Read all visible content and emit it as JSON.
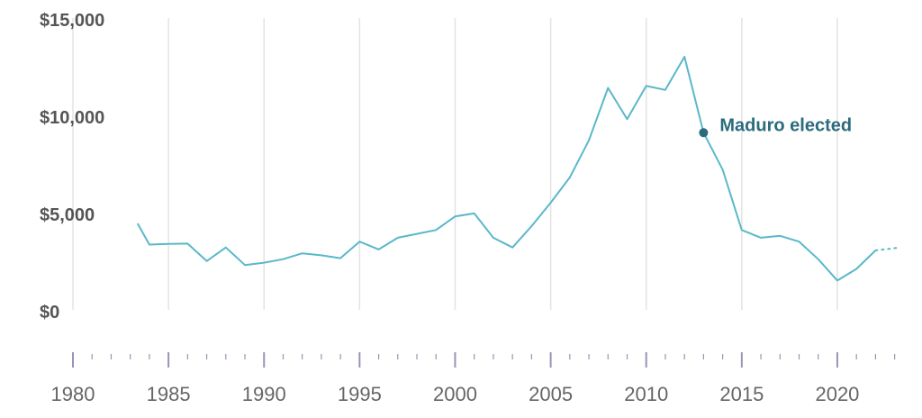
{
  "colors": {
    "line": "#5ab8c9",
    "annotation": "#2a6b7c",
    "grid": "#e3e3e3",
    "tick": "#9b92b8",
    "axis_text": "#555555"
  },
  "chart_data": {
    "type": "line",
    "title": "",
    "xlabel": "",
    "ylabel": "",
    "xlim": [
      1980,
      2023.3
    ],
    "ylim": [
      0,
      15000
    ],
    "grid": "vertical",
    "y_ticks": [
      {
        "value": 0,
        "label": "$0"
      },
      {
        "value": 5000,
        "label": "$5,000"
      },
      {
        "value": 10000,
        "label": "$10,000"
      },
      {
        "value": 15000,
        "label": "$15,000"
      }
    ],
    "x_ticks": [
      {
        "value": 1980,
        "label": "1980"
      },
      {
        "value": 1985,
        "label": "1985"
      },
      {
        "value": 1990,
        "label": "1990"
      },
      {
        "value": 1995,
        "label": "1995"
      },
      {
        "value": 2000,
        "label": "2000"
      },
      {
        "value": 2005,
        "label": "2005"
      },
      {
        "value": 2010,
        "label": "2010"
      },
      {
        "value": 2015,
        "label": "2015"
      },
      {
        "value": 2020,
        "label": "2020"
      }
    ],
    "series": [
      {
        "x": [
          1983.4,
          1984,
          1985,
          1986,
          1987,
          1988,
          1989,
          1990,
          1991,
          1992,
          1993,
          1994,
          1995,
          1996,
          1997,
          1998,
          1999,
          2000,
          2001,
          2002,
          2003,
          2004,
          2005,
          2006,
          2007,
          2008,
          2009,
          2010,
          2011,
          2012,
          2013,
          2014,
          2015,
          2016,
          2017,
          2018,
          2019,
          2020,
          2021,
          2022
        ],
        "y": [
          4500,
          3450,
          3480,
          3500,
          2600,
          3300,
          2400,
          2520,
          2700,
          3000,
          2900,
          2750,
          3600,
          3200,
          3800,
          4000,
          4200,
          4900,
          5050,
          3800,
          3300,
          4400,
          5600,
          6900,
          8800,
          11500,
          9900,
          11600,
          11400,
          13100,
          9200,
          7300,
          4200,
          3800,
          3900,
          3600,
          2700,
          1600,
          2200,
          3150
        ]
      },
      {
        "line_style": "dotted",
        "x": [
          2022,
          2023.3
        ],
        "y": [
          3150,
          3300
        ]
      }
    ],
    "annotations": [
      {
        "x": 2013,
        "y": 9200,
        "text": "Maduro elected"
      }
    ]
  }
}
